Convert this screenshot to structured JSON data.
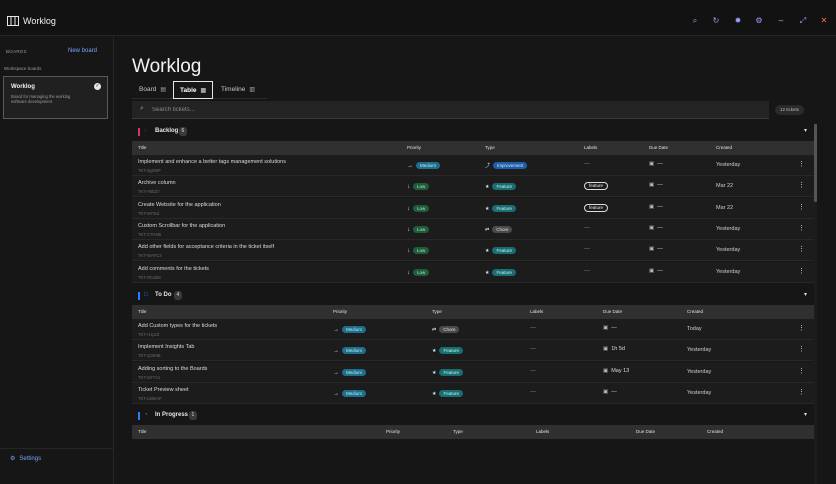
{
  "app": {
    "title": "Worklog"
  },
  "titlebar_icons": [
    "search-icon",
    "refresh-icon",
    "theme-icon",
    "gear-icon",
    "minimize-icon",
    "fullscreen-icon",
    "close-icon"
  ],
  "sidebar": {
    "boards_label": "BOARDS",
    "new_board": "New board",
    "workspace_label": "Workspace boards",
    "board": {
      "title": "Worklog",
      "description": "Board for managing the worklog software development"
    },
    "settings": "Settings"
  },
  "main": {
    "page_title": "Worklog",
    "tabs": [
      {
        "label": "Board",
        "active": false
      },
      {
        "label": "Table",
        "active": true
      },
      {
        "label": "Timeline",
        "active": false
      }
    ],
    "search_placeholder": "Search tickets...",
    "ticket_count": "12 tickets"
  },
  "colors": {
    "medium_bg": "#1f6f8b",
    "medium_fg": "#bfeaff",
    "low_bg": "#1f5c3a",
    "low_fg": "#aee8c6",
    "feature_bg": "#1a6d70",
    "feature_fg": "#bff4ee",
    "improvement_bg": "#1f5ea8",
    "improvement_fg": "#cfe3ff",
    "chore_bg": "#4a4a4a",
    "chore_fg": "#e0e0e0",
    "backlog_accent": "#d6336c",
    "todo_accent": "#2b7bff",
    "progress_accent": "#2b7bff",
    "link": "#7aa2ff"
  },
  "sections": [
    {
      "name": "Backlog",
      "count": "6",
      "icon": "circle-dashed-icon",
      "columns": [
        "Title",
        "Priority",
        "Type",
        "Labels",
        "Due Date",
        "Created"
      ],
      "rows": [
        {
          "title": "Implement and enhance a better tags management solutions",
          "id": "TKT-0gSMP",
          "priority": "Medium",
          "type": "Improvement",
          "label": "",
          "due": "—",
          "created": "Yesterday"
        },
        {
          "title": "Archive column",
          "id": "TKT-H5bZ7",
          "priority": "Low",
          "type": "Feature",
          "label": "feature",
          "due": "—",
          "created": "Mar 22"
        },
        {
          "title": "Create Website for the application",
          "id": "TKT-M7r5d",
          "priority": "Low",
          "type": "Feature",
          "label": "feature",
          "due": "—",
          "created": "Mar 22"
        },
        {
          "title": "Custom Scrollbar for the application",
          "id": "TKT-C7HM5",
          "priority": "Low",
          "type": "Chore",
          "label": "",
          "due": "—",
          "created": "Yesterday"
        },
        {
          "title": "Add other fields for acceptance criteria in the ticket itself",
          "id": "TKT-WAFC2",
          "priority": "Low",
          "type": "Feature",
          "label": "",
          "due": "—",
          "created": "Yesterday"
        },
        {
          "title": "Add comments for the tickets",
          "id": "TKT-Rh3dM",
          "priority": "Low",
          "type": "Feature",
          "label": "",
          "due": "—",
          "created": "Yesterday"
        }
      ]
    },
    {
      "name": "To Do",
      "count": "4",
      "icon": "circle-icon",
      "columns": [
        "Title",
        "Priority",
        "Type",
        "Labels",
        "Due Date",
        "Created"
      ],
      "rows": [
        {
          "title": "Add Custom types for the tickets",
          "id": "TKT-HJp2Z",
          "priority": "Medium",
          "type": "Chore",
          "label": "",
          "due": "—",
          "created": "Today"
        },
        {
          "title": "Implement Insights Tab",
          "id": "TKT-Q3K9B",
          "priority": "Medium",
          "type": "Feature",
          "label": "",
          "due": "1h 5d",
          "created": "Yesterday"
        },
        {
          "title": "Adding sorting to the Boards",
          "id": "TKT-M7Yn1",
          "priority": "Medium",
          "type": "Feature",
          "label": "",
          "due": "May 13",
          "created": "Yesterday"
        },
        {
          "title": "Ticket Preview sheet",
          "id": "TKT-LW5mP",
          "priority": "Medium",
          "type": "Feature",
          "label": "",
          "due": "—",
          "created": "Yesterday"
        }
      ]
    },
    {
      "name": "In Progress",
      "count": "1",
      "icon": "half-circle-icon",
      "columns": [
        "Title",
        "Priority",
        "Type",
        "Labels",
        "Due Date",
        "Created"
      ],
      "rows": []
    }
  ]
}
